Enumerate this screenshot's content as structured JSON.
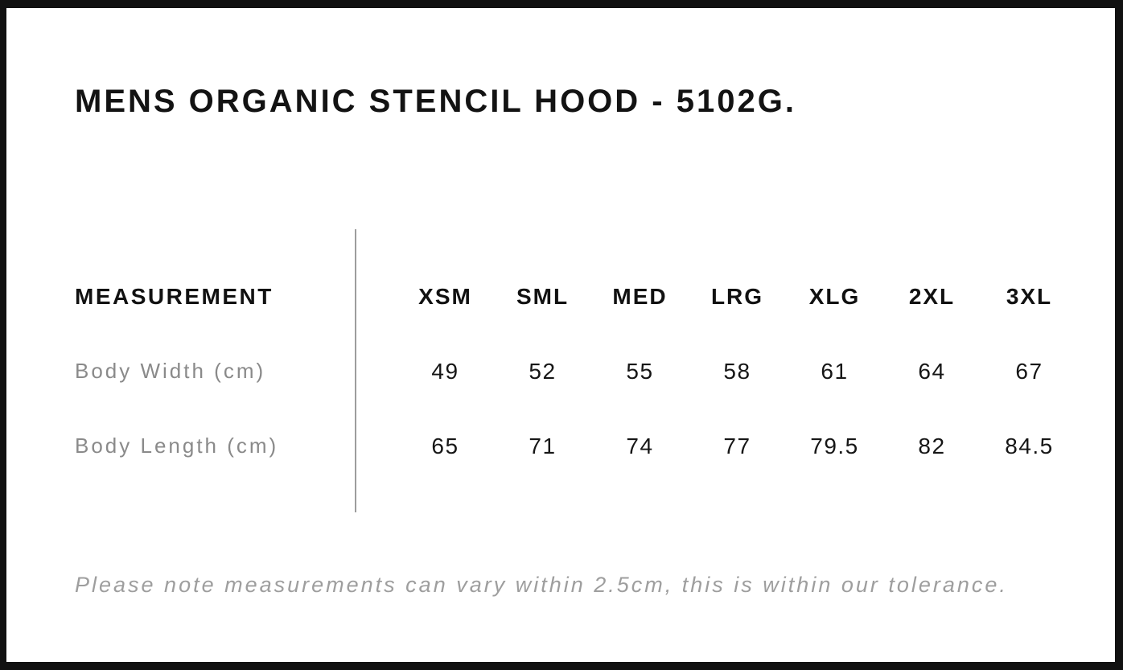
{
  "page": {
    "title": "MENS ORGANIC STENCIL HOOD - 5102G.",
    "note": "Please note measurements can vary within 2.5cm, this is within our tolerance."
  },
  "size_chart": {
    "measurement_header": "MEASUREMENT",
    "sizes": [
      "XSM",
      "SML",
      "MED",
      "LRG",
      "XLG",
      "2XL",
      "3XL"
    ],
    "rows": [
      {
        "label": "Body Width (cm)",
        "values": [
          "49",
          "52",
          "55",
          "58",
          "61",
          "64",
          "67"
        ]
      },
      {
        "label": "Body Length (cm)",
        "values": [
          "65",
          "71",
          "74",
          "77",
          "79.5",
          "82",
          "84.5"
        ]
      }
    ]
  },
  "chart_data": {
    "type": "table",
    "title": "MENS ORGANIC STENCIL HOOD - 5102G.",
    "columns": [
      "MEASUREMENT",
      "XSM",
      "SML",
      "MED",
      "LRG",
      "XLG",
      "2XL",
      "3XL"
    ],
    "rows": [
      [
        "Body Width (cm)",
        49,
        52,
        55,
        58,
        61,
        64,
        67
      ],
      [
        "Body Length (cm)",
        65,
        71,
        74,
        77,
        79.5,
        82,
        84.5
      ]
    ],
    "footnote": "Please note measurements can vary within 2.5cm, this is within our tolerance."
  },
  "colors": {
    "frame": "#111111",
    "background": "#ffffff",
    "text_primary": "#131313",
    "text_muted": "#8a8a8a",
    "note_text": "#9e9e9e",
    "divider": "#9d9d9d"
  }
}
